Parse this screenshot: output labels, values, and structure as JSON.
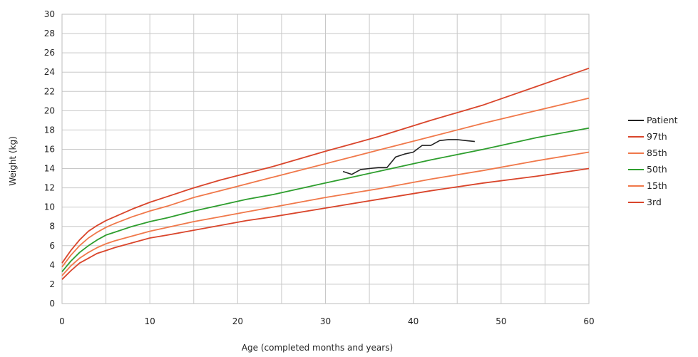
{
  "chart_data": {
    "type": "line",
    "title": "",
    "xlabel": "Age (completed months and years)",
    "ylabel": "Weight (kg)",
    "xlim": [
      0,
      60
    ],
    "ylim": [
      0,
      30
    ],
    "x_ticks": [
      0,
      10,
      20,
      30,
      40,
      50,
      60
    ],
    "y_ticks": [
      0,
      2,
      4,
      6,
      8,
      10,
      12,
      14,
      16,
      18,
      20,
      22,
      24,
      26,
      28,
      30
    ],
    "grid": true,
    "legend_position": "right",
    "series": [
      {
        "name": "Patient",
        "color": "#222222",
        "x": [
          32,
          33,
          34,
          35,
          36,
          37,
          38,
          39,
          40,
          41,
          42,
          43,
          44,
          45,
          46,
          47
        ],
        "y": [
          13.7,
          13.4,
          13.9,
          14.0,
          14.1,
          14.1,
          15.2,
          15.5,
          15.7,
          16.4,
          16.4,
          16.9,
          17.0,
          17.0,
          16.9,
          16.8
        ]
      },
      {
        "name": "97th",
        "color": "#d9452b",
        "x": [
          0,
          1,
          2,
          3,
          4,
          5,
          6,
          8,
          10,
          12,
          15,
          18,
          21,
          24,
          30,
          36,
          42,
          48,
          54,
          60
        ],
        "y": [
          4.2,
          5.5,
          6.6,
          7.5,
          8.1,
          8.6,
          9.0,
          9.8,
          10.5,
          11.1,
          12.0,
          12.8,
          13.5,
          14.2,
          15.8,
          17.3,
          19.0,
          20.6,
          22.5,
          24.4
        ]
      },
      {
        "name": "85th",
        "color": "#f0784a",
        "x": [
          0,
          1,
          2,
          3,
          4,
          5,
          6,
          8,
          10,
          12,
          15,
          18,
          21,
          24,
          30,
          36,
          42,
          48,
          54,
          60
        ],
        "y": [
          3.8,
          5.0,
          6.0,
          6.8,
          7.4,
          7.9,
          8.3,
          9.0,
          9.6,
          10.1,
          11.0,
          11.7,
          12.4,
          13.1,
          14.5,
          15.9,
          17.3,
          18.7,
          20.0,
          21.3
        ]
      },
      {
        "name": "50th",
        "color": "#2e9e2e",
        "x": [
          0,
          1,
          2,
          3,
          4,
          5,
          6,
          8,
          10,
          12,
          15,
          18,
          21,
          24,
          30,
          36,
          42,
          48,
          54,
          60
        ],
        "y": [
          3.3,
          4.4,
          5.3,
          6.0,
          6.6,
          7.1,
          7.4,
          8.0,
          8.5,
          8.9,
          9.6,
          10.2,
          10.8,
          11.3,
          12.5,
          13.7,
          14.9,
          16.0,
          17.2,
          18.2
        ]
      },
      {
        "name": "15th",
        "color": "#f0784a",
        "x": [
          0,
          1,
          2,
          3,
          4,
          5,
          6,
          8,
          10,
          12,
          15,
          18,
          21,
          24,
          30,
          36,
          42,
          48,
          54,
          60
        ],
        "y": [
          2.9,
          3.9,
          4.7,
          5.3,
          5.8,
          6.2,
          6.5,
          7.0,
          7.5,
          7.9,
          8.5,
          9.0,
          9.5,
          10.0,
          11.0,
          11.9,
          12.9,
          13.8,
          14.8,
          15.7
        ]
      },
      {
        "name": "3rd",
        "color": "#d9452b",
        "x": [
          0,
          1,
          2,
          3,
          4,
          5,
          6,
          8,
          10,
          12,
          15,
          18,
          21,
          24,
          30,
          36,
          42,
          48,
          54,
          60
        ],
        "y": [
          2.5,
          3.4,
          4.2,
          4.7,
          5.2,
          5.5,
          5.8,
          6.3,
          6.8,
          7.1,
          7.6,
          8.1,
          8.6,
          9.0,
          9.9,
          10.8,
          11.7,
          12.5,
          13.2,
          14.0
        ]
      }
    ]
  }
}
